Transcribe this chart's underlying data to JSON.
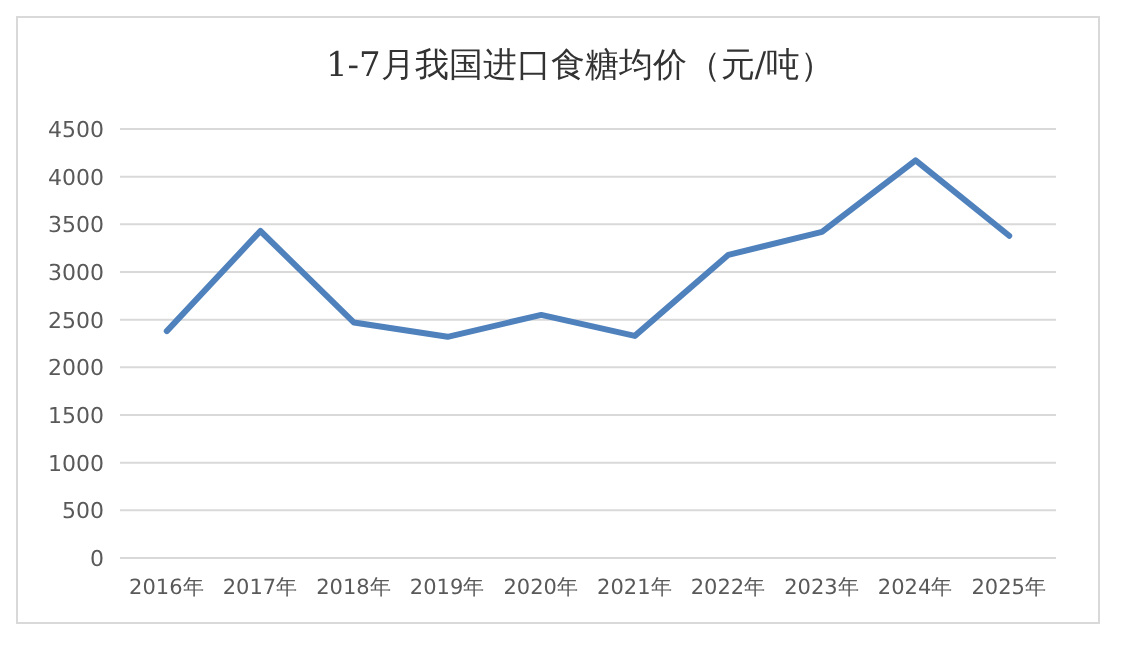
{
  "chart_data": {
    "type": "line",
    "title": "1-7月我国进口食糖均价（元/吨）",
    "categories": [
      "2016年",
      "2017年",
      "2018年",
      "2019年",
      "2020年",
      "2021年",
      "2022年",
      "2023年",
      "2024年",
      "2025年"
    ],
    "series": [
      {
        "color": "#4f81bd",
        "values": [
          2380,
          3430,
          2470,
          2320,
          2550,
          2330,
          3180,
          3420,
          4170,
          3380
        ]
      }
    ],
    "ylim": [
      0,
      4500
    ],
    "yticks": [
      0,
      500,
      1000,
      1500,
      2000,
      2500,
      3000,
      3500,
      4000,
      4500
    ],
    "grid": "y",
    "marker": "none",
    "line_style": "solid"
  }
}
